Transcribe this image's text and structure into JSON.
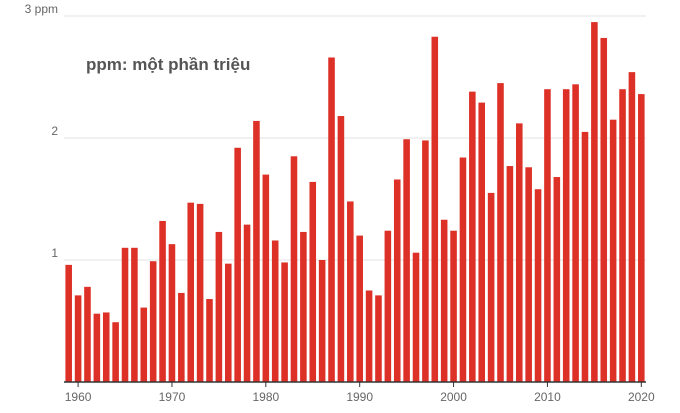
{
  "chart_data": {
    "type": "bar",
    "annotation": "ppm: một phần triệu",
    "title": "",
    "xlabel": "",
    "ylabel": "",
    "ylim": [
      0,
      3
    ],
    "y_ticks": [
      {
        "value": 3,
        "label": "3 ppm"
      },
      {
        "value": 2,
        "label": "2"
      },
      {
        "value": 1,
        "label": "1"
      }
    ],
    "x_ticks": [
      1960,
      1970,
      1980,
      1990,
      2000,
      2010,
      2020
    ],
    "grid": "horizontal",
    "legend": "none",
    "bar_color": "#dd3127",
    "categories": [
      1959,
      1960,
      1961,
      1962,
      1963,
      1964,
      1965,
      1966,
      1967,
      1968,
      1969,
      1970,
      1971,
      1972,
      1973,
      1974,
      1975,
      1976,
      1977,
      1978,
      1979,
      1980,
      1981,
      1982,
      1983,
      1984,
      1985,
      1986,
      1987,
      1988,
      1989,
      1990,
      1991,
      1992,
      1993,
      1994,
      1995,
      1996,
      1997,
      1998,
      1999,
      2000,
      2001,
      2002,
      2003,
      2004,
      2005,
      2006,
      2007,
      2008,
      2009,
      2010,
      2011,
      2012,
      2013,
      2014,
      2015,
      2016,
      2017,
      2018,
      2019,
      2020
    ],
    "values": [
      0.96,
      0.71,
      0.78,
      0.56,
      0.57,
      0.49,
      1.1,
      1.1,
      0.61,
      0.99,
      1.32,
      1.13,
      0.73,
      1.47,
      1.46,
      0.68,
      1.23,
      0.97,
      1.92,
      1.29,
      2.14,
      1.7,
      1.16,
      0.98,
      1.85,
      1.23,
      1.64,
      1.0,
      2.66,
      2.18,
      1.48,
      1.2,
      0.75,
      0.71,
      1.24,
      1.66,
      1.99,
      1.06,
      1.98,
      2.83,
      1.33,
      1.24,
      1.84,
      2.38,
      2.29,
      1.55,
      2.45,
      1.77,
      2.12,
      1.76,
      1.58,
      2.4,
      1.68,
      2.4,
      2.44,
      2.05,
      2.95,
      2.82,
      2.15,
      2.4,
      2.54,
      2.36
    ]
  }
}
